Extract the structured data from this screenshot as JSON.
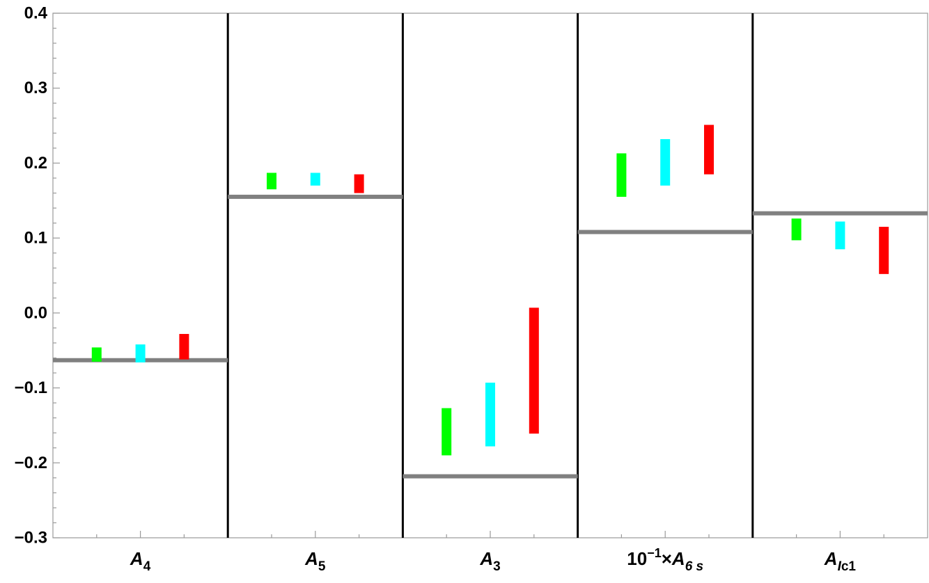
{
  "chart_data": {
    "type": "bar",
    "subtype": "floating-range-with-reference-lines",
    "title": "",
    "xlabel": "",
    "ylabel": "",
    "ylim": [
      -0.3,
      0.4
    ],
    "yticks": [
      "0.4",
      "0.3",
      "0.2",
      "0.1",
      "0.0",
      "−0.1",
      "−0.2",
      "−0.3"
    ],
    "ytick_values": [
      0.4,
      0.3,
      0.2,
      0.1,
      0.0,
      -0.1,
      -0.2,
      -0.3
    ],
    "grid": false,
    "legend": "none",
    "series_colors": [
      "#00ff00",
      "#00ffff",
      "#ff0000"
    ],
    "reference_color": "#808080",
    "panels": [
      {
        "label_parts": [
          {
            "text": "A",
            "italic": true
          },
          {
            "text": "4",
            "sub": true
          }
        ],
        "reference": -0.063,
        "ranges": [
          [
            -0.065,
            -0.046
          ],
          [
            -0.066,
            -0.042
          ],
          [
            -0.062,
            -0.028
          ]
        ]
      },
      {
        "label_parts": [
          {
            "text": "A",
            "italic": true
          },
          {
            "text": "5",
            "sub": true
          }
        ],
        "reference": 0.155,
        "ranges": [
          [
            0.165,
            0.187
          ],
          [
            0.17,
            0.187
          ],
          [
            0.16,
            0.185
          ]
        ]
      },
      {
        "label_parts": [
          {
            "text": "A",
            "italic": true
          },
          {
            "text": "3",
            "sub": true
          }
        ],
        "reference": -0.218,
        "ranges": [
          [
            -0.19,
            -0.127
          ],
          [
            -0.178,
            -0.093
          ],
          [
            -0.161,
            0.007
          ]
        ]
      },
      {
        "label_parts": [
          {
            "text": "10"
          },
          {
            "text": "−1",
            "sup": true
          },
          {
            "text": "×"
          },
          {
            "text": "A",
            "italic": true
          },
          {
            "text": "6 s",
            "sub": true,
            "italic": true
          }
        ],
        "reference": 0.108,
        "ranges": [
          [
            0.155,
            0.213
          ],
          [
            0.17,
            0.232
          ],
          [
            0.185,
            0.251
          ]
        ]
      },
      {
        "label_parts": [
          {
            "text": "A",
            "italic": true
          },
          {
            "text": "I",
            "sub": true,
            "italic": true
          },
          {
            "text": "c1",
            "sub": true
          }
        ],
        "reference": 0.133,
        "ranges": [
          [
            0.097,
            0.126
          ],
          [
            0.085,
            0.122
          ],
          [
            0.052,
            0.115
          ]
        ]
      }
    ]
  }
}
